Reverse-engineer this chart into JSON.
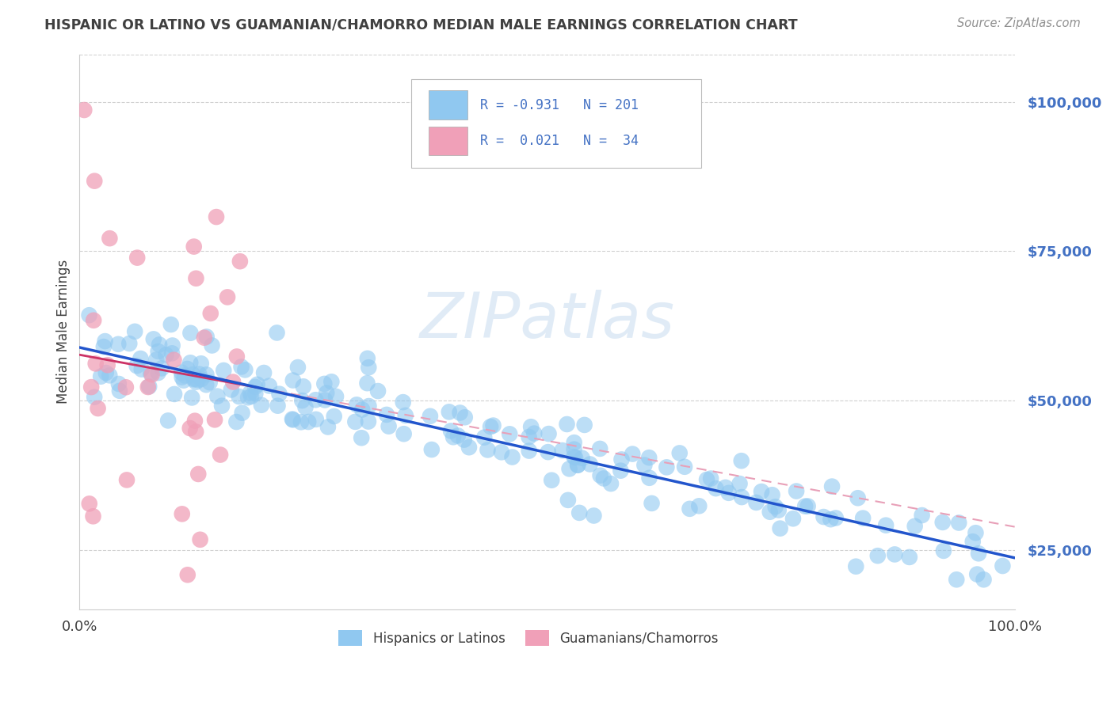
{
  "title": "HISPANIC OR LATINO VS GUAMANIAN/CHAMORRO MEDIAN MALE EARNINGS CORRELATION CHART",
  "source": "Source: ZipAtlas.com",
  "ylabel": "Median Male Earnings",
  "xlim": [
    0.0,
    1.0
  ],
  "ylim": [
    15000,
    108000
  ],
  "yticks": [
    25000,
    50000,
    75000,
    100000
  ],
  "ytick_labels": [
    "$25,000",
    "$50,000",
    "$75,000",
    "$100,000"
  ],
  "blue_R": -0.931,
  "blue_N": 201,
  "pink_R": 0.021,
  "pink_N": 34,
  "blue_color": "#90C8F0",
  "blue_edge_color": "#90C8F0",
  "pink_color": "#F0A0B8",
  "blue_line_color": "#2255CC",
  "pink_line_color": "#CC3366",
  "pink_line_dashed_color": "#E8A0B8",
  "title_color": "#404040",
  "source_color": "#909090",
  "axis_label_color": "#4472C4",
  "watermark": "ZIPatlas",
  "background_color": "#FFFFFF",
  "grid_color": "#CCCCCC",
  "legend_label1": "Hispanics or Latinos",
  "legend_label2": "Guamanians/Chamorros"
}
